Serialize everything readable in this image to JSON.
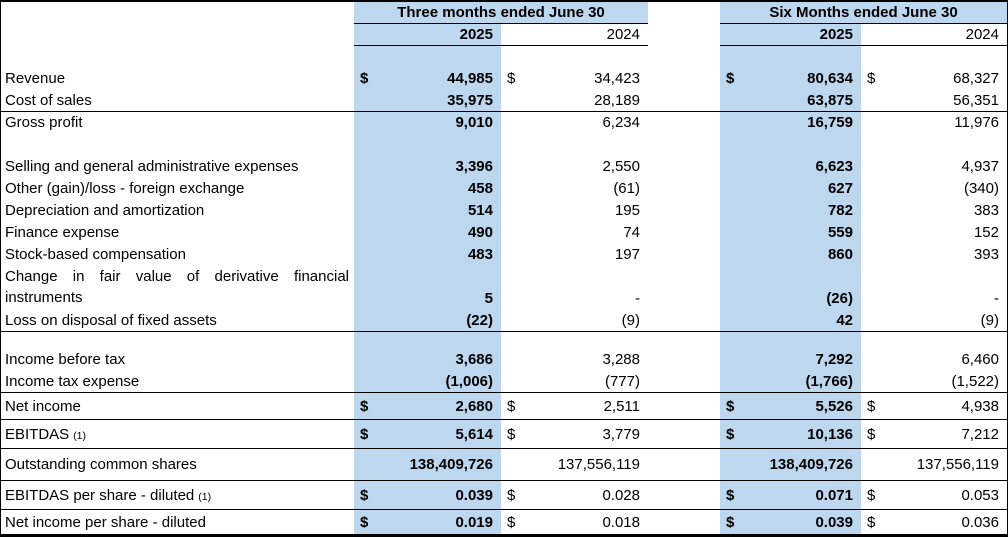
{
  "table": {
    "currency": "$",
    "groups": [
      {
        "label": "Three months ended June 30",
        "years": [
          "2025",
          "2024"
        ]
      },
      {
        "label": "Six Months ended June 30",
        "years": [
          "2025",
          "2024"
        ]
      }
    ],
    "rows": [
      {
        "blank": true,
        "height": 21
      },
      {
        "label": "Revenue",
        "dollar": true,
        "values": [
          "44,985",
          "34,423",
          "80,634",
          "68,327"
        ]
      },
      {
        "label": "Cost of sales",
        "values": [
          "35,975",
          "28,189",
          "63,875",
          "56,351"
        ]
      },
      {
        "label": "Gross profit",
        "border_top": true,
        "values": [
          "9,010",
          "6,234",
          "16,759",
          "11,976"
        ]
      },
      {
        "blank": true,
        "height": 22
      },
      {
        "label": "Selling and general administrative expenses",
        "values": [
          "3,396",
          "2,550",
          "6,623",
          "4,937"
        ]
      },
      {
        "label": "Other (gain)/loss - foreign exchange",
        "values": [
          "458",
          "(61)",
          "627",
          "(340)"
        ]
      },
      {
        "label": "Depreciation and amortization",
        "values": [
          "514",
          "195",
          "782",
          "383"
        ]
      },
      {
        "label": "Finance expense",
        "values": [
          "490",
          "74",
          "559",
          "152"
        ]
      },
      {
        "label": "Stock-based compensation",
        "values": [
          "483",
          "197",
          "860",
          "393"
        ]
      },
      {
        "label": "Change in fair value of derivative financial instruments",
        "two_line": true,
        "height": 44,
        "values": [
          "5",
          "-",
          "(26)",
          "-"
        ]
      },
      {
        "label": "Loss on disposal of fixed assets",
        "values": [
          "(22)",
          "(9)",
          "42",
          "(9)"
        ]
      },
      {
        "blank": true,
        "border_top": true,
        "height": 17
      },
      {
        "label": "Income before tax",
        "values": [
          "3,686",
          "3,288",
          "7,292",
          "6,460"
        ]
      },
      {
        "label": "Income tax expense",
        "values": [
          "(1,006)",
          "(777)",
          "(1,766)",
          "(1,522)"
        ]
      },
      {
        "label": "Net income",
        "dollar": true,
        "border_top": true,
        "height": 27,
        "values": [
          "2,680",
          "2,511",
          "5,526",
          "4,938"
        ]
      },
      {
        "label": "EBITDAS",
        "footnote": "(1)",
        "dollar": true,
        "border_top": true,
        "height": 29,
        "values": [
          "5,614",
          "3,779",
          "10,136",
          "7,212"
        ]
      },
      {
        "label": "Outstanding common shares",
        "border_top": true,
        "height": 32,
        "values": [
          "138,409,726",
          "137,556,119",
          "138,409,726",
          "137,556,119"
        ]
      },
      {
        "label": "EBITDAS per share - diluted",
        "footnote": "(1)",
        "dollar": true,
        "border_top": true,
        "height": 29,
        "values": [
          "0.039",
          "0.028",
          "0.071",
          "0.053"
        ]
      },
      {
        "label": "Net income per share - diluted",
        "dollar": true,
        "border_top": true,
        "height": 25,
        "values": [
          "0.019",
          "0.018",
          "0.039",
          "0.036"
        ]
      }
    ]
  },
  "colors": {
    "highlight": "#BDD7EE",
    "border": "#000000",
    "text": "#000000"
  }
}
